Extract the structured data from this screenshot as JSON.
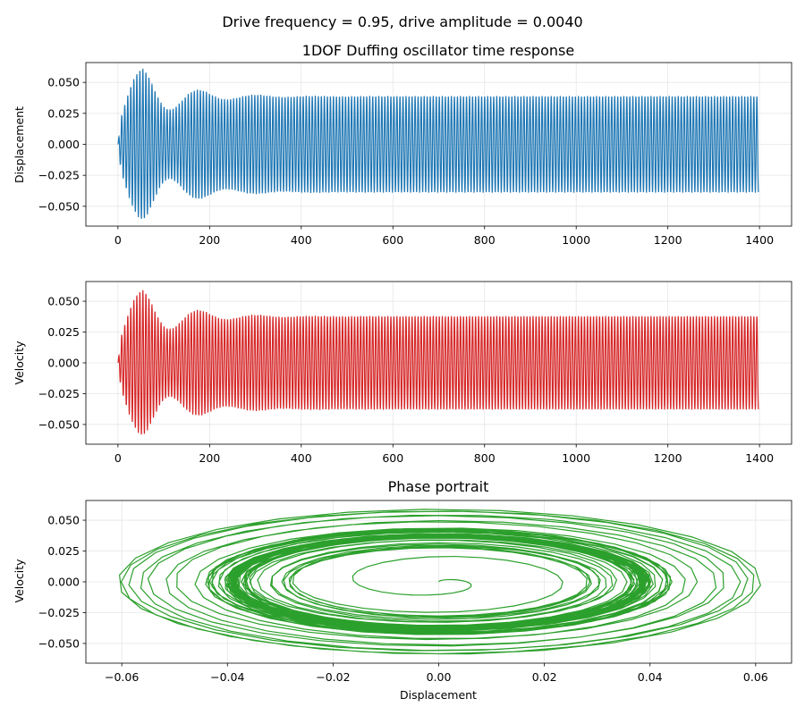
{
  "suptitle": "Drive frequency = 0.95, drive amplitude = 0.0040",
  "colors": {
    "displacement": "#1f77b4",
    "velocity": "#d62728",
    "phase": "#2ca02c",
    "grid": "#e6e6e6"
  },
  "chart_data": [
    {
      "type": "line",
      "title": "1DOF Duffing oscillator time response",
      "xlabel": "",
      "ylabel": "Displacement",
      "xlim": [
        -70,
        1470
      ],
      "ylim": [
        -0.066,
        0.066
      ],
      "xticks": [
        0,
        200,
        400,
        600,
        800,
        1000,
        1200,
        1400
      ],
      "yticks": [
        -0.05,
        -0.025,
        0.0,
        0.025,
        0.05
      ],
      "xtick_labels": [
        "0",
        "200",
        "400",
        "600",
        "800",
        "1000",
        "1200",
        "1400"
      ],
      "ytick_labels": [
        "−0.050",
        "−0.025",
        "0.000",
        "0.025",
        "0.050"
      ],
      "grid": true,
      "series": [
        {
          "x_range": [
            0,
            1398
          ],
          "peak_amplitude": 0.061,
          "peak_time": 55,
          "steady_amplitude": 0.039,
          "period": 6.6,
          "color": "#1f77b4"
        }
      ]
    },
    {
      "type": "line",
      "title": "",
      "xlabel": "",
      "ylabel": "Velocity",
      "xlim": [
        -70,
        1470
      ],
      "ylim": [
        -0.066,
        0.066
      ],
      "xticks": [
        0,
        200,
        400,
        600,
        800,
        1000,
        1200,
        1400
      ],
      "yticks": [
        -0.05,
        -0.025,
        0.0,
        0.025,
        0.05
      ],
      "xtick_labels": [
        "0",
        "200",
        "400",
        "600",
        "800",
        "1000",
        "1200",
        "1400"
      ],
      "ytick_labels": [
        "−0.050",
        "−0.025",
        "0.000",
        "0.025",
        "0.050"
      ],
      "grid": true,
      "series": [
        {
          "x_range": [
            0,
            1398
          ],
          "peak_amplitude": 0.059,
          "peak_time": 55,
          "steady_amplitude": 0.038,
          "period": 6.6,
          "color": "#d62728"
        }
      ]
    },
    {
      "type": "line",
      "title": "Phase portrait",
      "xlabel": "Displacement",
      "ylabel": "Velocity",
      "xlim": [
        -0.0668,
        0.0668
      ],
      "ylim": [
        -0.066,
        0.066
      ],
      "xticks": [
        -0.06,
        -0.04,
        -0.02,
        0.0,
        0.02,
        0.04,
        0.06
      ],
      "yticks": [
        -0.05,
        -0.025,
        0.0,
        0.025,
        0.05
      ],
      "xtick_labels": [
        "−0.06",
        "−0.04",
        "−0.02",
        "0.00",
        "0.02",
        "0.04",
        "0.06"
      ],
      "ytick_labels": [
        "−0.050",
        "−0.025",
        "0.000",
        "0.025",
        "0.050"
      ],
      "grid": true,
      "series": [
        {
          "max_displacement": 0.061,
          "max_velocity": 0.059,
          "steady_displacement": 0.039,
          "steady_velocity": 0.038,
          "color": "#2ca02c"
        }
      ]
    }
  ]
}
